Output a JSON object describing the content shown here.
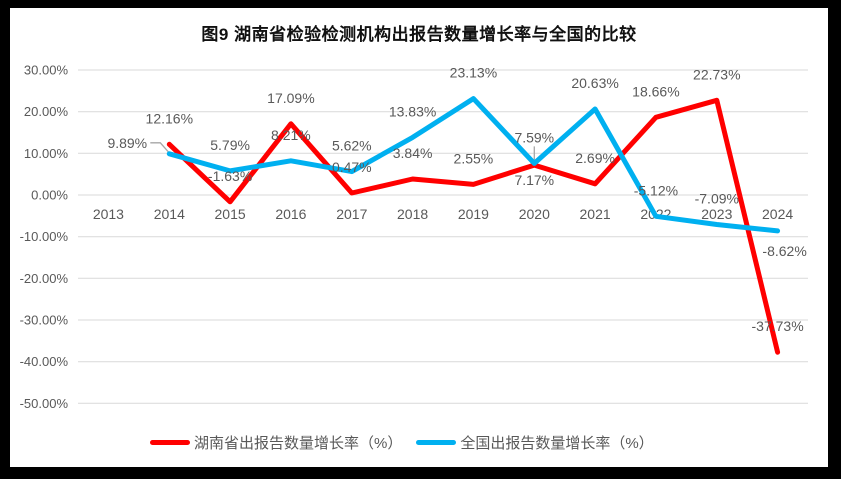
{
  "title": "图9 湖南省检验检测机构出报告数量增长率与全国的比较",
  "chart_data": {
    "type": "line",
    "title": "图9 湖南省检验检测机构出报告数量增长率与全国的比较",
    "x": [
      "2013",
      "2014",
      "2015",
      "2016",
      "2017",
      "2018",
      "2019",
      "2020",
      "2021",
      "2022",
      "2023",
      "2024"
    ],
    "series": [
      {
        "id": "hunan",
        "name": "湖南省出报告数量增长率（%）",
        "color": "#FF0000",
        "start_index": 1,
        "values": [
          12.16,
          -1.63,
          17.09,
          0.47,
          3.84,
          2.55,
          7.17,
          2.69,
          18.66,
          22.73,
          -37.73
        ],
        "labels": [
          "12.16%",
          "-1.63%",
          "17.09%",
          "0.47%",
          "3.84%",
          "2.55%",
          "7.17%",
          "2.69%",
          "18.66%",
          "22.73%",
          "-37.73%"
        ],
        "label_offsets": {
          "6": [
            0,
            15
          ]
        }
      },
      {
        "id": "national",
        "name": "全国出报告数量增长率（%）",
        "color": "#00B0F0",
        "start_index": 1,
        "values": [
          9.89,
          5.79,
          8.21,
          5.62,
          13.83,
          23.13,
          7.59,
          20.63,
          -5.12,
          -7.09,
          -8.62
        ],
        "labels": [
          "9.89%",
          "5.79%",
          "8.21%",
          "5.62%",
          "13.83%",
          "23.13%",
          "7.59%",
          "20.63%",
          "-5.12%",
          "-7.09%",
          "-8.62%"
        ],
        "label_offsets": {
          "0": [
            -42,
            -11
          ],
          "10": [
            7,
            20
          ]
        }
      }
    ],
    "y_tick_labels": [
      "30.00%",
      "20.00%",
      "10.00%",
      "0.00%",
      "-10.00%",
      "-20.00%",
      "-30.00%",
      "-40.00%",
      "-50.00%"
    ],
    "y_tick_values": [
      30,
      20,
      10,
      0,
      -10,
      -20,
      -30,
      -40,
      -50
    ],
    "ylim": [
      -50,
      30
    ],
    "grid": true,
    "legend_position": "bottom",
    "leader_lines": [
      {
        "series": "national",
        "point_index": 0,
        "shape": "bent"
      },
      {
        "series": "national",
        "point_index": 6,
        "shape": "vertical"
      }
    ],
    "colors": {
      "grid": "#D9D9D9",
      "axis_text": "#595959",
      "label_text": "#595959",
      "leader": "#A6A6A6",
      "background": "#FFFFFF",
      "frame": "#000000"
    }
  }
}
